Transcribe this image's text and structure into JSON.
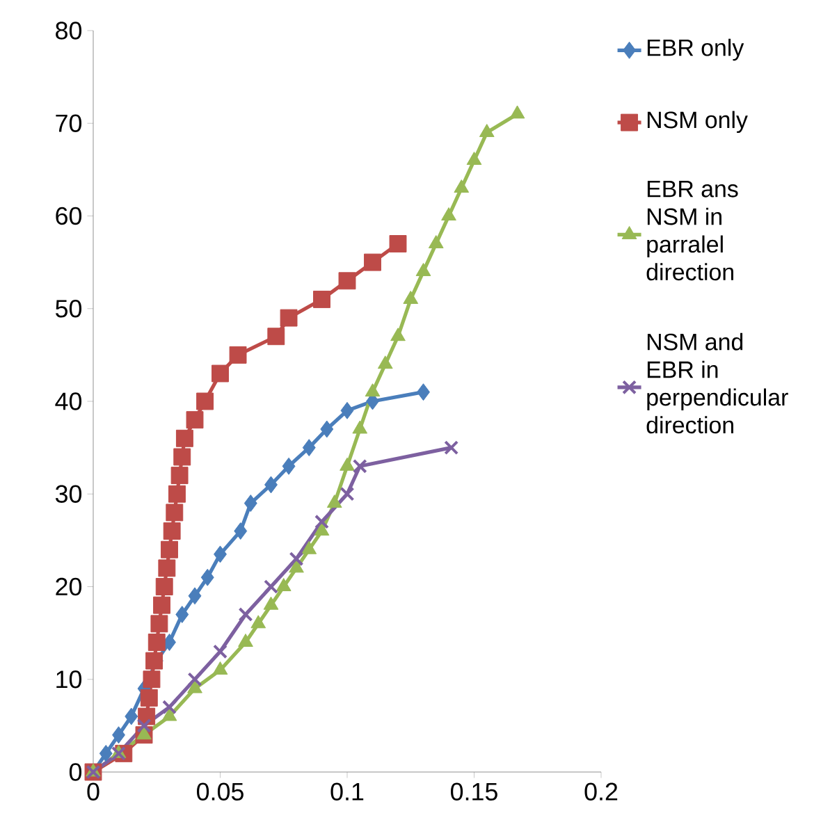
{
  "chart_data": {
    "type": "line",
    "xlim": [
      0,
      0.2
    ],
    "ylim": [
      0,
      80
    ],
    "xticks": [
      0,
      0.05,
      0.1,
      0.15,
      0.2
    ],
    "yticks": [
      0,
      10,
      20,
      30,
      40,
      50,
      60,
      70,
      80
    ],
    "grid": false,
    "legend": "right",
    "series": [
      {
        "name": "EBR only",
        "color": "#4a7ebb",
        "marker": "diamond",
        "x": [
          0,
          0.005,
          0.01,
          0.015,
          0.02,
          0.025,
          0.03,
          0.035,
          0.04,
          0.045,
          0.05,
          0.058,
          0.062,
          0.07,
          0.077,
          0.085,
          0.092,
          0.1,
          0.11,
          0.13
        ],
        "values": [
          0,
          2,
          4,
          6,
          9,
          12,
          14,
          17,
          19,
          21,
          23.5,
          26,
          29,
          31,
          33,
          35,
          37,
          39,
          40,
          41
        ]
      },
      {
        "name": "NSM only",
        "color": "#be4b48",
        "marker": "square",
        "x": [
          0,
          0.012,
          0.02,
          0.021,
          0.022,
          0.023,
          0.024,
          0.025,
          0.026,
          0.027,
          0.028,
          0.029,
          0.03,
          0.031,
          0.032,
          0.033,
          0.034,
          0.035,
          0.036,
          0.04,
          0.044,
          0.05,
          0.057,
          0.072,
          0.077,
          0.09,
          0.1,
          0.11,
          0.12
        ],
        "values": [
          0,
          2,
          4,
          6,
          8,
          10,
          12,
          14,
          16,
          18,
          20,
          22,
          24,
          26,
          28,
          30,
          32,
          34,
          36,
          38,
          40,
          43,
          45,
          47,
          49,
          51,
          53,
          55,
          57
        ]
      },
      {
        "name": "EBR ans NSM in parralel direction",
        "color": "#98b954",
        "marker": "triangle",
        "x": [
          0,
          0.01,
          0.02,
          0.03,
          0.04,
          0.05,
          0.06,
          0.065,
          0.07,
          0.075,
          0.08,
          0.085,
          0.09,
          0.095,
          0.1,
          0.105,
          0.11,
          0.115,
          0.12,
          0.125,
          0.13,
          0.135,
          0.14,
          0.145,
          0.15,
          0.155,
          0.167
        ],
        "values": [
          0,
          2,
          4,
          6,
          9,
          11,
          14,
          16,
          18,
          20,
          22,
          24,
          26,
          29,
          33,
          37,
          41,
          44,
          47,
          51,
          54,
          57,
          60,
          63,
          66,
          69,
          71
        ]
      },
      {
        "name": "NSM and EBR in perpendicular direction",
        "color": "#7d60a0",
        "marker": "cross",
        "x": [
          0,
          0.01,
          0.02,
          0.03,
          0.04,
          0.05,
          0.06,
          0.07,
          0.08,
          0.09,
          0.1,
          0.105,
          0.141
        ],
        "values": [
          0,
          2,
          5,
          7,
          10,
          13,
          17,
          20,
          23,
          27,
          30,
          33,
          35
        ]
      }
    ]
  }
}
